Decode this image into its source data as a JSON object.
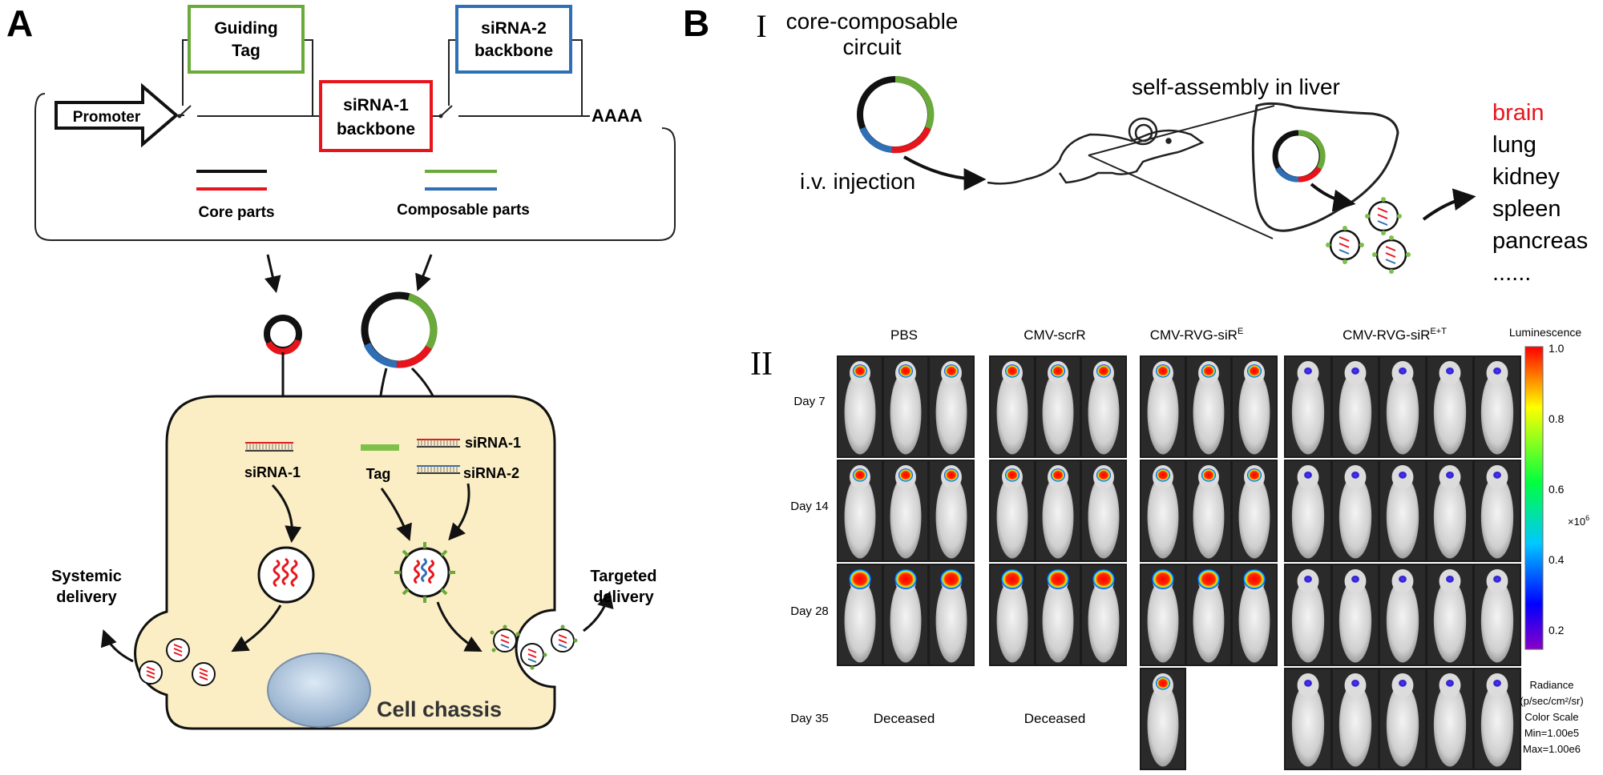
{
  "panel_a": {
    "letter": "A",
    "guiding_tag_line1": "Guiding",
    "guiding_tag_line2": "Tag",
    "sirna2_backbone_line1": "siRNA-2",
    "sirna2_backbone_line2": "backbone",
    "sirna1_backbone_line1": "siRNA-1",
    "sirna1_backbone_line2": "backbone",
    "promoter": "Promoter",
    "polya": "AAAA",
    "core_parts": "Core parts",
    "composable_parts": "Composable parts",
    "sirna1": "siRNA-1",
    "sirna1_right": "siRNA-1",
    "sirna2": "siRNA-2",
    "tag": "Tag",
    "systemic_delivery_line1": "Systemic",
    "systemic_delivery_line2": "delivery",
    "targeted_delivery_line1": "Targeted",
    "targeted_delivery_line2": "delivery",
    "cell_chassis": "Cell chassis"
  },
  "panel_b": {
    "letter": "B",
    "section1_numeral": "I",
    "section2_numeral": "II",
    "circuit_line1": "core-composable",
    "circuit_line2": "circuit",
    "injection": "i.v. injection",
    "self_assembly": "self-assembly in liver",
    "organs": [
      "brain",
      "lung",
      "kidney",
      "spleen",
      "pancreas",
      "......"
    ],
    "highlight_color": "#e8141c"
  },
  "imaging": {
    "groups": [
      "PBS",
      "CMV-scrR",
      "CMV-RVG-siR",
      "CMV-RVG-siR"
    ],
    "group3_sup": "E",
    "group4_sup": "E+T",
    "days": [
      "Day 7",
      "Day 14",
      "Day 28",
      "Day 35"
    ],
    "deceased_pbs": "Deceased",
    "deceased_scrr": "Deceased",
    "colorbar_title": "Luminescence",
    "colorbar_ticks": [
      "1.0",
      "0.8",
      "0.6",
      "0.4",
      "0.2"
    ],
    "colorbar_multiplier": "×10",
    "colorbar_exp": "6",
    "radiance_lines": [
      "Radiance",
      "(p/sec/cm²/sr)",
      "Color Scale",
      "Min=1.00e5",
      "Max=1.00e6"
    ]
  },
  "colors": {
    "core_black": "#111111",
    "core_red": "#e8141c",
    "composable_green": "#6aaa3a",
    "composable_blue": "#2f6fb5",
    "cell_fill": "#fbeec5"
  }
}
